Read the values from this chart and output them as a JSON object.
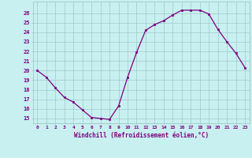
{
  "x": [
    0,
    1,
    2,
    3,
    4,
    5,
    6,
    7,
    8,
    9,
    10,
    11,
    12,
    13,
    14,
    15,
    16,
    17,
    18,
    19,
    20,
    21,
    22,
    23
  ],
  "y": [
    20.0,
    19.3,
    18.2,
    17.2,
    16.7,
    15.9,
    15.1,
    15.0,
    14.9,
    16.3,
    19.3,
    21.9,
    24.2,
    24.8,
    25.2,
    25.8,
    26.3,
    26.3,
    26.3,
    25.9,
    24.3,
    23.0,
    21.8,
    20.3
  ],
  "line_color": "#7b0080",
  "marker": "s",
  "marker_size": 2.0,
  "bg_color": "#c8f0f0",
  "grid_color": "#a0c8c8",
  "xlabel": "Windchill (Refroidissement éolien,°C)",
  "ylabel_ticks": [
    15,
    16,
    17,
    18,
    19,
    20,
    21,
    22,
    23,
    24,
    25,
    26
  ],
  "xlim": [
    -0.5,
    23.5
  ],
  "ylim": [
    14.5,
    27.2
  ],
  "xticks": [
    0,
    1,
    2,
    3,
    4,
    5,
    6,
    7,
    8,
    9,
    10,
    11,
    12,
    13,
    14,
    15,
    16,
    17,
    18,
    19,
    20,
    21,
    22,
    23
  ]
}
